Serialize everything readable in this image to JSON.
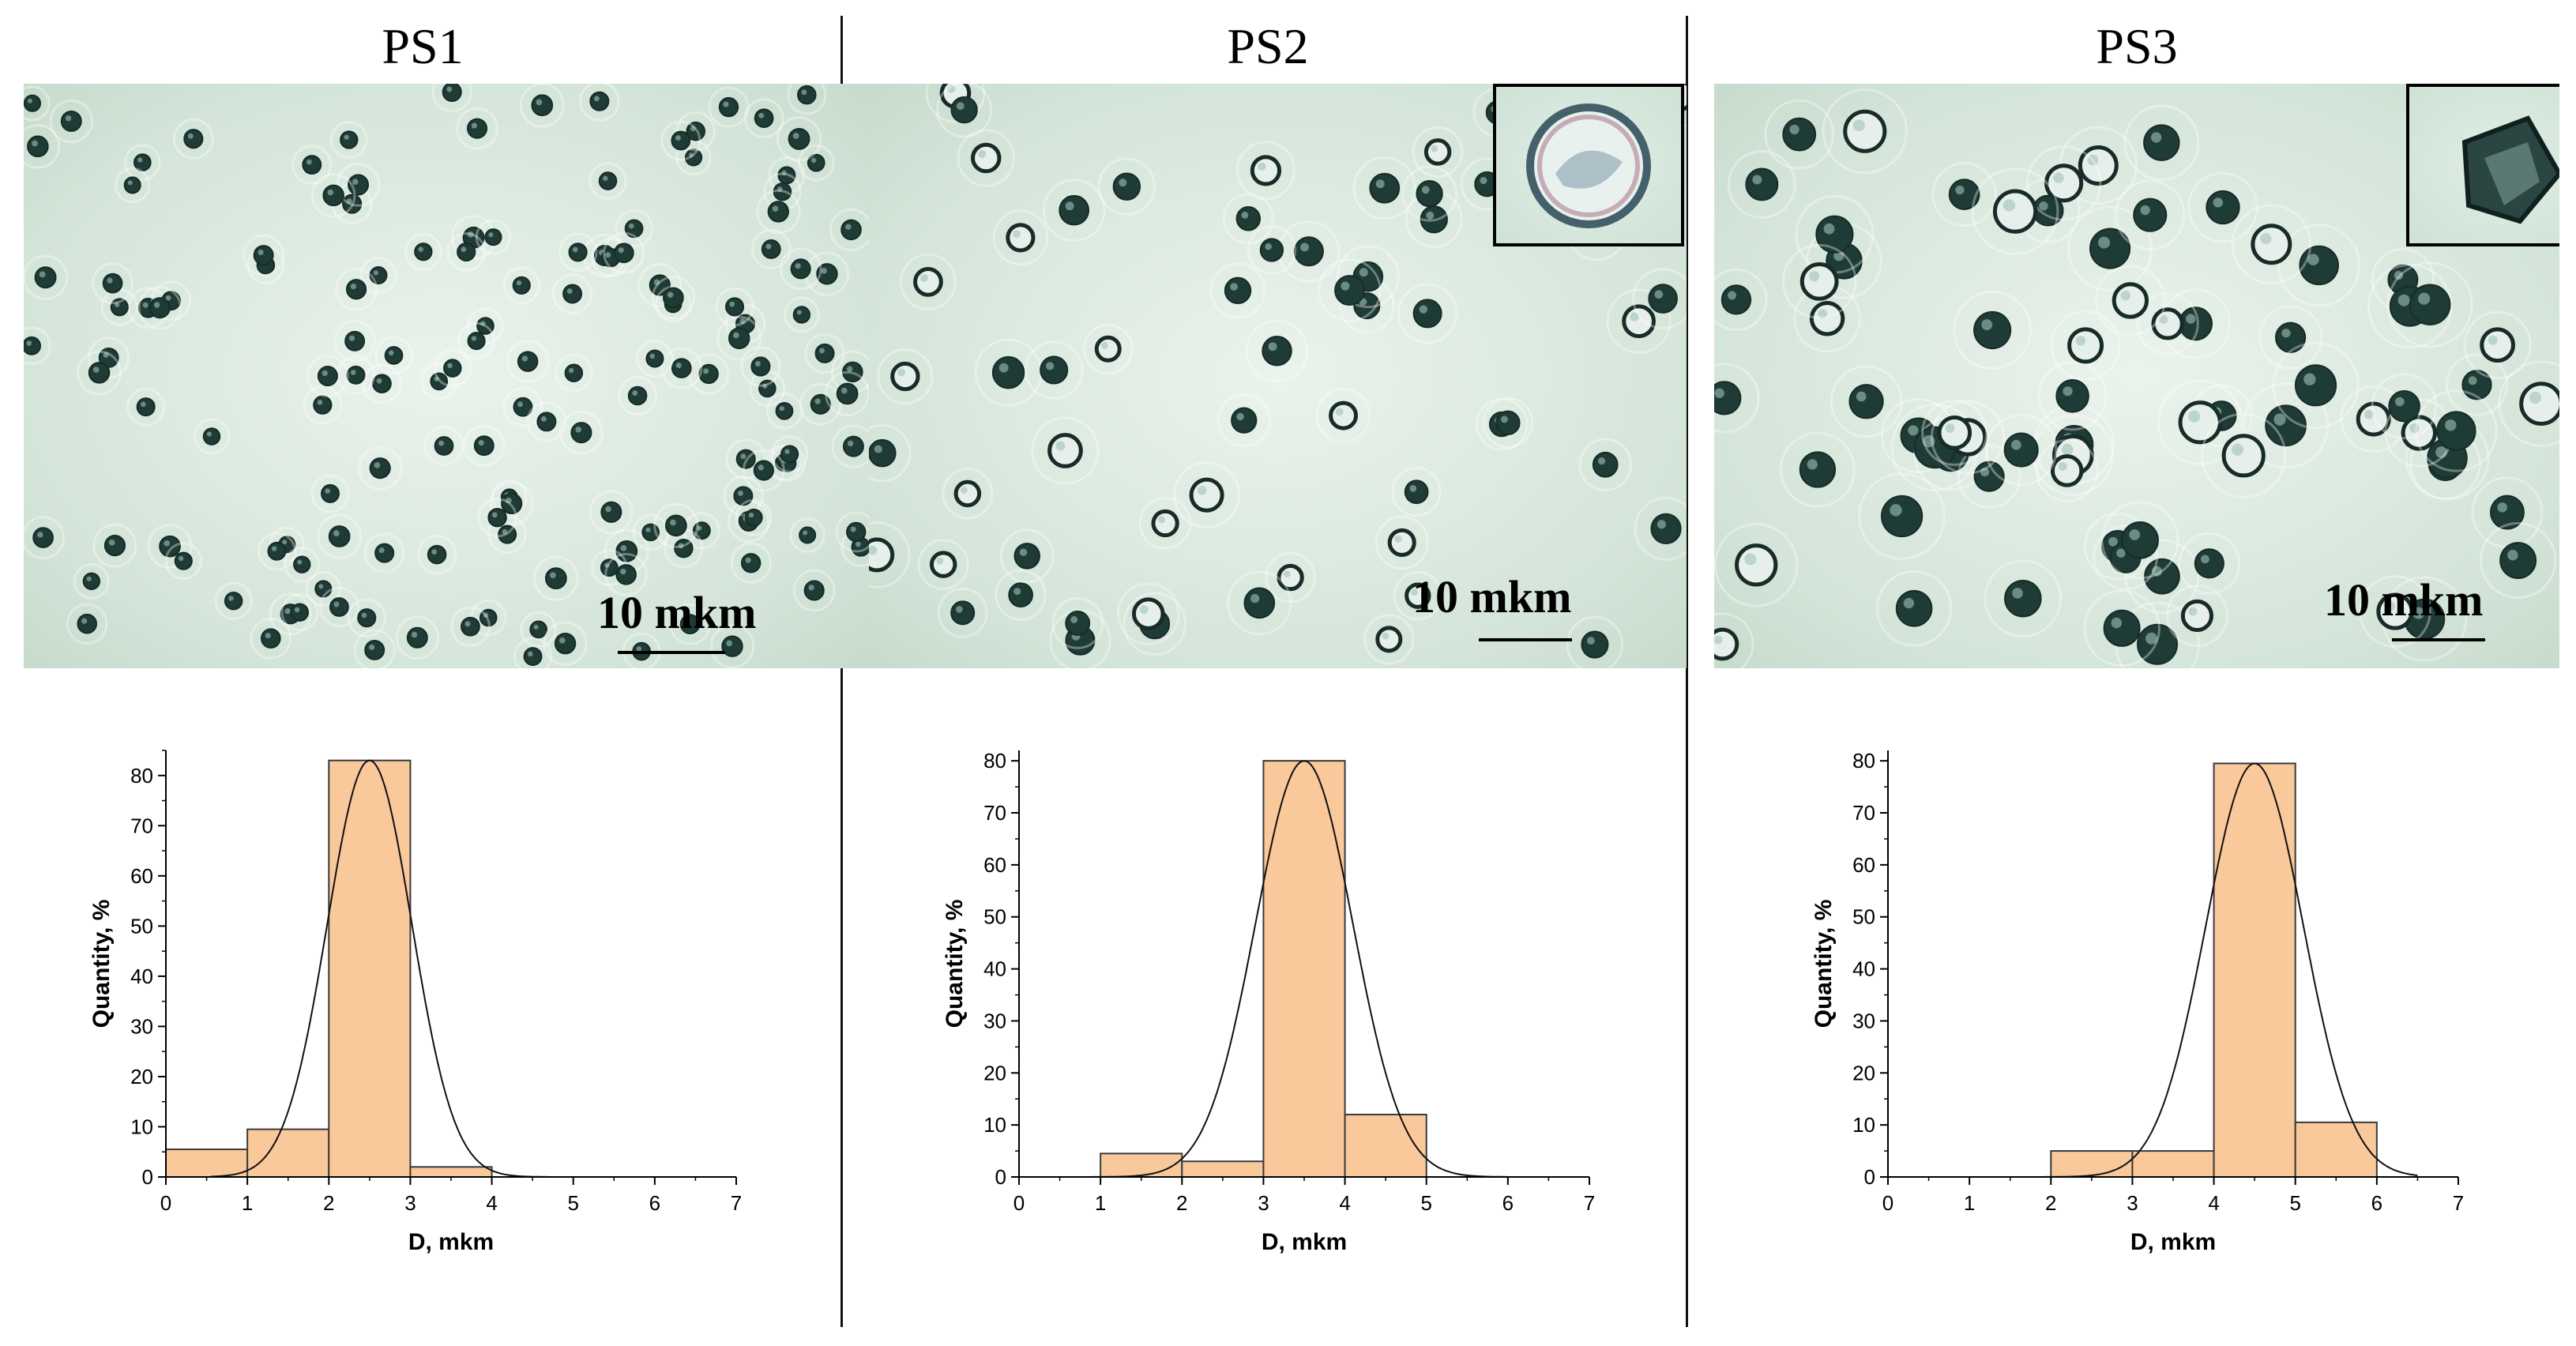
{
  "panels": [
    {
      "title": "PS1",
      "scale_label": "10 mkm",
      "inset": false
    },
    {
      "title": "PS2",
      "scale_label": "10 mkm",
      "inset": true
    },
    {
      "title": "PS3",
      "scale_label": "10 mkm",
      "inset": true
    }
  ],
  "chart_data": [
    {
      "type": "bar",
      "panel": "PS1",
      "bins": [
        [
          0,
          1
        ],
        [
          1,
          2
        ],
        [
          2,
          3
        ],
        [
          3,
          4
        ]
      ],
      "values": [
        5.5,
        9.5,
        83,
        2
      ],
      "fit_curve": {
        "type": "gaussian",
        "mean": 2.5,
        "sigma": 0.52,
        "peak": 83,
        "range": [
          0.55,
          4.7
        ]
      },
      "xlabel": "D, mkm",
      "ylabel": "Quantity, %",
      "xlim": [
        0,
        7
      ],
      "ylim": [
        0,
        85
      ],
      "xticks": [
        0,
        1,
        2,
        3,
        4,
        5,
        6,
        7
      ],
      "yticks": [
        0,
        10,
        20,
        30,
        40,
        50,
        60,
        70,
        80
      ],
      "grid": false
    },
    {
      "type": "bar",
      "panel": "PS2",
      "bins": [
        [
          1,
          2
        ],
        [
          2,
          3
        ],
        [
          3,
          4
        ],
        [
          4,
          5
        ]
      ],
      "values": [
        4.5,
        3,
        80,
        12
      ],
      "fit_curve": {
        "type": "gaussian",
        "mean": 3.5,
        "sigma": 0.6,
        "peak": 80,
        "range": [
          0.6,
          6.0
        ]
      },
      "xlabel": "D, mkm",
      "ylabel": "Quantity, %",
      "xlim": [
        0,
        7
      ],
      "ylim": [
        0,
        82
      ],
      "xticks": [
        0,
        1,
        2,
        3,
        4,
        5,
        6,
        7
      ],
      "yticks": [
        0,
        10,
        20,
        30,
        40,
        50,
        60,
        70,
        80
      ],
      "grid": false
    },
    {
      "type": "bar",
      "panel": "PS3",
      "bins": [
        [
          2,
          3
        ],
        [
          3,
          4
        ],
        [
          4,
          5
        ],
        [
          5,
          6
        ]
      ],
      "values": [
        5,
        5,
        79.5,
        10.5
      ],
      "fit_curve": {
        "type": "gaussian",
        "mean": 4.5,
        "sigma": 0.6,
        "peak": 79.5,
        "range": [
          1.1,
          6.5
        ]
      },
      "xlabel": "D, mkm",
      "ylabel": "Quantity, %",
      "xlim": [
        0,
        7
      ],
      "ylim": [
        0,
        82
      ],
      "xticks": [
        0,
        1,
        2,
        3,
        4,
        5,
        6,
        7
      ],
      "yticks": [
        0,
        10,
        20,
        30,
        40,
        50,
        60,
        70,
        80
      ],
      "grid": false
    }
  ],
  "colors": {
    "bar_fill": "#f9c89b",
    "bar_stroke": "#3a3a3a",
    "curve": "#111111",
    "micro_background": "#d3e4d8",
    "cell_dark": "#1f3b36"
  }
}
